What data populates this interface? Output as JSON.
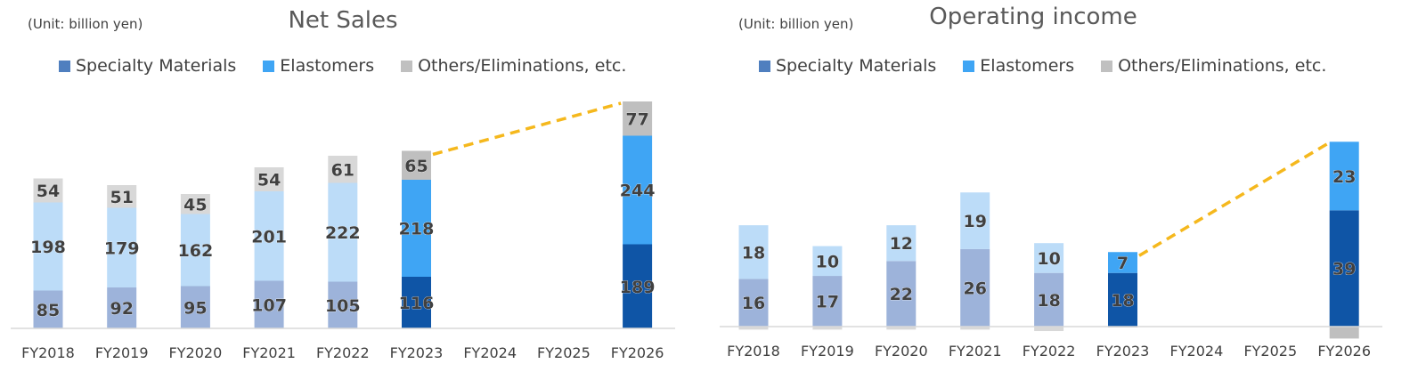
{
  "colors": {
    "specialty_hist": "#9db3da",
    "specialty_act": "#0f55a6",
    "elastomer_hist": "#bcdcf8",
    "elastomer_act": "#3fa5f4",
    "others_hist": "#d8d8d8",
    "others_act": "#bfbfbf",
    "legend_specialty": "#4f7fbf",
    "legend_elastomer": "#3fa5f4",
    "legend_others": "#c0c0c0",
    "dash": "#f5b81d"
  },
  "legend": [
    {
      "name": "Specialty Materials",
      "color_key": "legend_specialty"
    },
    {
      "name": "Elastomers",
      "color_key": "legend_elastomer"
    },
    {
      "name": "Others/Eliminations, etc.",
      "color_key": "legend_others"
    }
  ],
  "chart_data": [
    {
      "type": "bar",
      "stacked": true,
      "title": "Net Sales",
      "unit_note": "(Unit: billion yen)",
      "categories": [
        "FY2018",
        "FY2019",
        "FY2020",
        "FY2021",
        "FY2022",
        "FY2023",
        "FY2024",
        "FY2025",
        "FY2026"
      ],
      "series": [
        {
          "name": "Specialty Materials",
          "values": [
            85,
            92,
            95,
            107,
            105,
            116,
            null,
            null,
            189
          ]
        },
        {
          "name": "Elastomers",
          "values": [
            198,
            179,
            162,
            201,
            222,
            218,
            null,
            null,
            244
          ]
        },
        {
          "name": "Others/Eliminations, etc.",
          "values": [
            54,
            51,
            45,
            54,
            61,
            65,
            null,
            null,
            77
          ]
        }
      ],
      "highlighted_categories": [
        "FY2023",
        "FY2026"
      ],
      "ylim": [
        0,
        510
      ],
      "dashed_trend": [
        "FY2023",
        "FY2026"
      ]
    },
    {
      "type": "bar",
      "stacked": true,
      "title": "Operating income",
      "unit_note": "(Unit: billion yen)",
      "categories": [
        "FY2018",
        "FY2019",
        "FY2020",
        "FY2021",
        "FY2022",
        "FY2023",
        "FY2024",
        "FY2025",
        "FY2026"
      ],
      "series": [
        {
          "name": "Specialty Materials",
          "values": [
            16,
            17,
            22,
            26,
            18,
            18,
            null,
            null,
            39
          ]
        },
        {
          "name": "Elastomers",
          "values": [
            18,
            10,
            12,
            19,
            10,
            7,
            null,
            null,
            23
          ]
        },
        {
          "name": "Others/Eliminations, etc.",
          "values": [
            -1,
            -1,
            -1,
            -1,
            -1.5,
            -0.3,
            null,
            null,
            -4
          ]
        }
      ],
      "highlighted_categories": [
        "FY2023",
        "FY2026"
      ],
      "ylim": [
        -4,
        62
      ],
      "dashed_trend": [
        "FY2023",
        "FY2026"
      ]
    }
  ]
}
